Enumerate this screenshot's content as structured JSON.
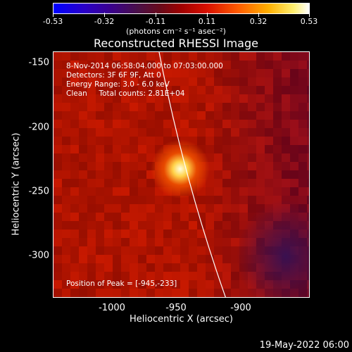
{
  "colorbar": {
    "ticks": [
      "-0.53",
      "-0.32",
      "-0.11",
      "0.11",
      "0.32",
      "0.53"
    ],
    "units": "(photons cm⁻² s⁻¹ asec⁻²)"
  },
  "title": "Reconstructed RHESSI Image",
  "annotations": {
    "time": "8-Nov-2014 06:58:04.000 to 07:03:00.000",
    "detectors": "Detectors: 3F 6F 9F, Att 0",
    "energy": "Energy Range: 3.0 - 6.0 keV",
    "clean": "Clean     Total counts: 2.81E+04",
    "peak": "Position of Peak = [-945,-233]"
  },
  "axes": {
    "xlabel": "Heliocentric X (arcsec)",
    "ylabel": "Heliocentric Y (arcsec)",
    "xticks": [
      "-1000",
      "-950",
      "-900"
    ],
    "yticks": [
      "-150",
      "-200",
      "-250",
      "-300"
    ]
  },
  "footer": {
    "datestamp": "19-May-2022 06:00"
  },
  "colors": {
    "background": "#000000",
    "limb": "#ffffff"
  }
}
